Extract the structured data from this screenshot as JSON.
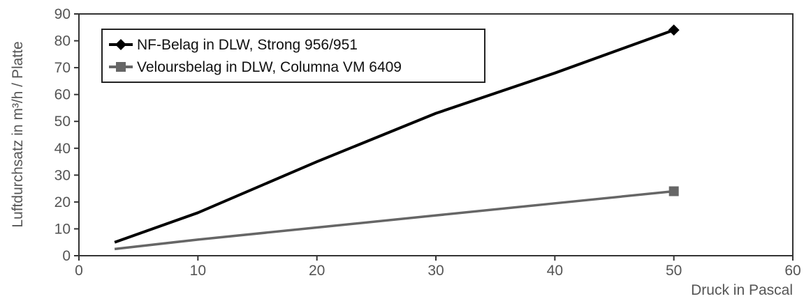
{
  "chart_data": {
    "type": "line",
    "xlabel": "Druck in Pascal",
    "ylabel": "Luftdurchsatz in m³/h / Platte",
    "xlim": [
      0,
      60
    ],
    "ylim": [
      0,
      90
    ],
    "xticks": [
      0,
      10,
      20,
      30,
      40,
      50,
      60
    ],
    "yticks": [
      0,
      10,
      20,
      30,
      40,
      50,
      60,
      70,
      80,
      90
    ],
    "grid": false,
    "legend_position": "top-left",
    "series": [
      {
        "name": "NF-Belag in DLW, Strong 956/951",
        "color": "#000000",
        "marker": "diamond",
        "x": [
          3,
          10,
          20,
          30,
          40,
          50
        ],
        "y": [
          5,
          16,
          35,
          53,
          68,
          84
        ]
      },
      {
        "name": "Veloursbelag in DLW, Columna VM 6409",
        "color": "#666666",
        "marker": "square",
        "x": [
          3,
          10,
          20,
          30,
          40,
          50
        ],
        "y": [
          2.5,
          6,
          10.5,
          15,
          19.5,
          24
        ]
      }
    ]
  }
}
